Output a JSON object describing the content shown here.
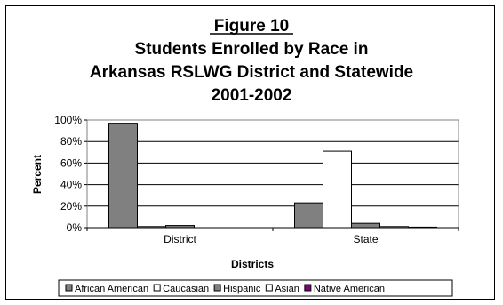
{
  "chart_data": {
    "type": "bar",
    "title_lines": [
      "Figure 10",
      "Students Enrolled by Race in",
      "Arkansas RSLWG District and Statewide",
      "2001-2002"
    ],
    "xlabel": "Districts",
    "ylabel": "Percent",
    "categories": [
      "District",
      "State"
    ],
    "ylim": [
      0,
      100
    ],
    "yticks": [
      0,
      20,
      40,
      60,
      80,
      100
    ],
    "ytick_labels": [
      "0%",
      "20%",
      "40%",
      "60%",
      "80%",
      "100%"
    ],
    "grid": true,
    "legend_position": "bottom",
    "series": [
      {
        "name": "African American",
        "color": "#808080",
        "values": [
          97,
          23
        ]
      },
      {
        "name": "Caucasian",
        "color": "#ffffff",
        "values": [
          1,
          71
        ]
      },
      {
        "name": "Hispanic",
        "color": "#808080",
        "values": [
          2,
          4
        ]
      },
      {
        "name": "Asian",
        "color": "#ffffff",
        "values": [
          0,
          1
        ]
      },
      {
        "name": "Native American",
        "color": "#800080",
        "values": [
          0,
          0.5
        ]
      }
    ]
  }
}
